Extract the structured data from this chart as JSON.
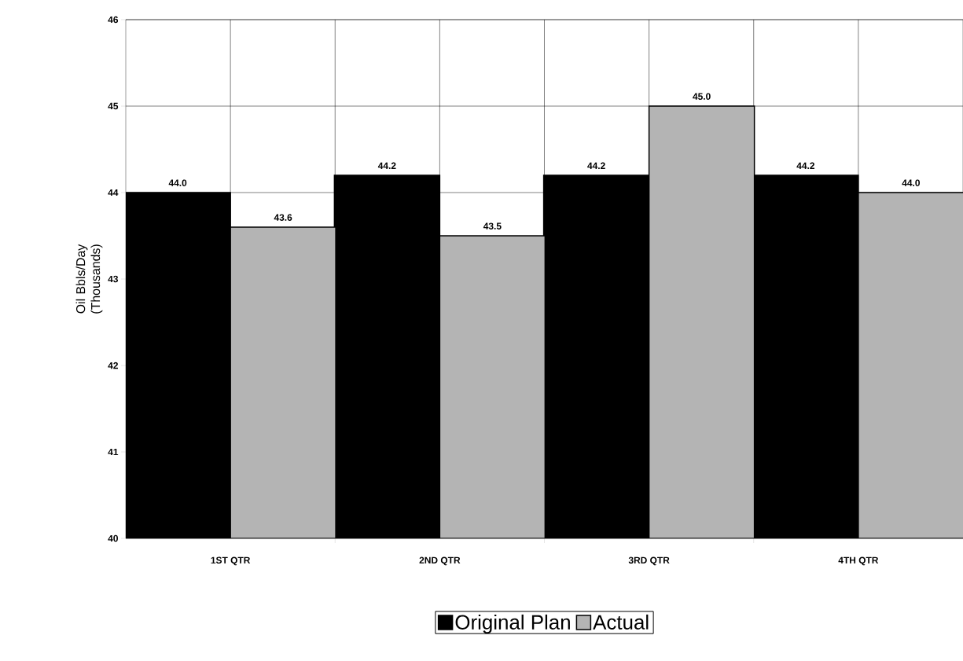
{
  "chart_data": {
    "type": "bar",
    "ylabel": "Oil Bbls/Day (Thousands)",
    "categories": [
      "1ST QTR",
      "2ND QTR",
      "3RD QTR",
      "4TH QTR"
    ],
    "series": [
      {
        "name": "Original Plan",
        "color": "#000000",
        "values": [
          44.0,
          44.2,
          44.2,
          44.2
        ],
        "value_labels": [
          "44.0",
          "44.2",
          "44.2",
          "44.2"
        ]
      },
      {
        "name": "Actual",
        "color": "#b4b4b4",
        "values": [
          43.6,
          43.5,
          45.0,
          44.0
        ],
        "value_labels": [
          "43.6",
          "43.5",
          "45.0",
          "44.0"
        ]
      }
    ],
    "ylim": [
      40,
      46
    ],
    "yticks": [
      40,
      41,
      42,
      43,
      44,
      45,
      46
    ],
    "grid": true,
    "legend": "bottom"
  }
}
